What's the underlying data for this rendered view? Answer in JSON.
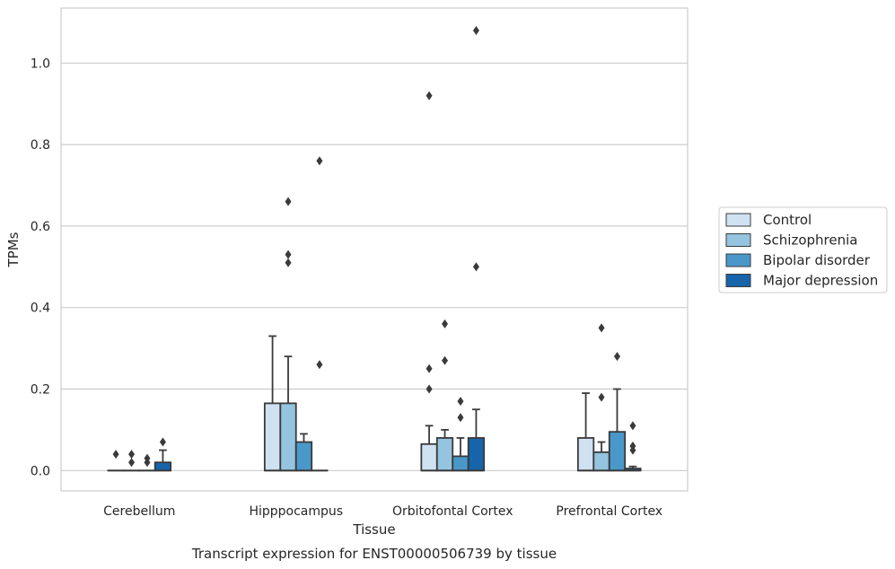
{
  "chart_data": {
    "type": "box",
    "title": "Transcript expression for ENST00000506739 by tissue",
    "xlabel": "Tissue",
    "ylabel": "TPMs",
    "ylim": [
      -0.05,
      1.135
    ],
    "yticks": [
      0.0,
      0.2,
      0.4,
      0.6,
      0.8,
      1.0
    ],
    "ytick_labels": [
      "0.0",
      "0.2",
      "0.4",
      "0.6",
      "0.8",
      "1.0"
    ],
    "grid": "horizontal",
    "legend_position": "right",
    "categories": [
      "Cerebellum",
      "Hipppocampus",
      "Orbitofontal Cortex",
      "Prefrontal Cortex"
    ],
    "series": [
      {
        "name": "Control",
        "color": "#d0e1f2",
        "boxes": [
          {
            "q1": 0,
            "median": 0,
            "q3": 0,
            "whisker_low": 0,
            "whisker_high": 0,
            "outliers": [
              0.04
            ]
          },
          {
            "q1": 0,
            "median": 0,
            "q3": 0.165,
            "whisker_low": 0,
            "whisker_high": 0.33,
            "outliers": []
          },
          {
            "q1": 0,
            "median": 0,
            "q3": 0.065,
            "whisker_low": 0,
            "whisker_high": 0.11,
            "outliers": [
              0.92,
              0.25,
              0.2
            ]
          },
          {
            "q1": 0,
            "median": 0,
            "q3": 0.08,
            "whisker_low": 0,
            "whisker_high": 0.19,
            "outliers": []
          }
        ]
      },
      {
        "name": "Schizophrenia",
        "color": "#94c4df",
        "boxes": [
          {
            "q1": 0,
            "median": 0,
            "q3": 0,
            "whisker_low": 0,
            "whisker_high": 0,
            "outliers": [
              0.04,
              0.02
            ]
          },
          {
            "q1": 0,
            "median": 0,
            "q3": 0.165,
            "whisker_low": 0,
            "whisker_high": 0.28,
            "outliers": [
              0.66,
              0.53,
              0.51
            ]
          },
          {
            "q1": 0,
            "median": 0,
            "q3": 0.08,
            "whisker_low": 0,
            "whisker_high": 0.1,
            "outliers": [
              0.36,
              0.27
            ]
          },
          {
            "q1": 0,
            "median": 0,
            "q3": 0.045,
            "whisker_low": 0,
            "whisker_high": 0.07,
            "outliers": [
              0.35,
              0.18
            ]
          }
        ]
      },
      {
        "name": "Bipolar disorder",
        "color": "#4a98c9",
        "boxes": [
          {
            "q1": 0,
            "median": 0,
            "q3": 0,
            "whisker_low": 0,
            "whisker_high": 0,
            "outliers": [
              0.03,
              0.02
            ]
          },
          {
            "q1": 0,
            "median": 0,
            "q3": 0.07,
            "whisker_low": 0,
            "whisker_high": 0.09,
            "outliers": []
          },
          {
            "q1": 0,
            "median": 0,
            "q3": 0.035,
            "whisker_low": 0,
            "whisker_high": 0.08,
            "outliers": [
              0.17,
              0.13
            ]
          },
          {
            "q1": 0,
            "median": 0,
            "q3": 0.095,
            "whisker_low": 0,
            "whisker_high": 0.2,
            "outliers": [
              0.28
            ]
          }
        ]
      },
      {
        "name": "Major depression",
        "color": "#1764ab",
        "boxes": [
          {
            "q1": 0,
            "median": 0,
            "q3": 0.02,
            "whisker_low": 0,
            "whisker_high": 0.05,
            "outliers": [
              0.07
            ]
          },
          {
            "q1": 0,
            "median": 0,
            "q3": 0,
            "whisker_low": 0,
            "whisker_high": 0,
            "outliers": [
              0.76,
              0.26
            ]
          },
          {
            "q1": 0,
            "median": 0,
            "q3": 0.08,
            "whisker_low": 0,
            "whisker_high": 0.15,
            "outliers": [
              1.08,
              0.5
            ]
          },
          {
            "q1": 0,
            "median": 0,
            "q3": 0.005,
            "whisker_low": 0,
            "whisker_high": 0.01,
            "outliers": [
              0.11,
              0.06,
              0.05
            ]
          }
        ]
      }
    ],
    "colors": {
      "grid": "#cccccc",
      "spine": "#cccccc",
      "line": "#3a3a3a",
      "text": "#262626"
    }
  }
}
